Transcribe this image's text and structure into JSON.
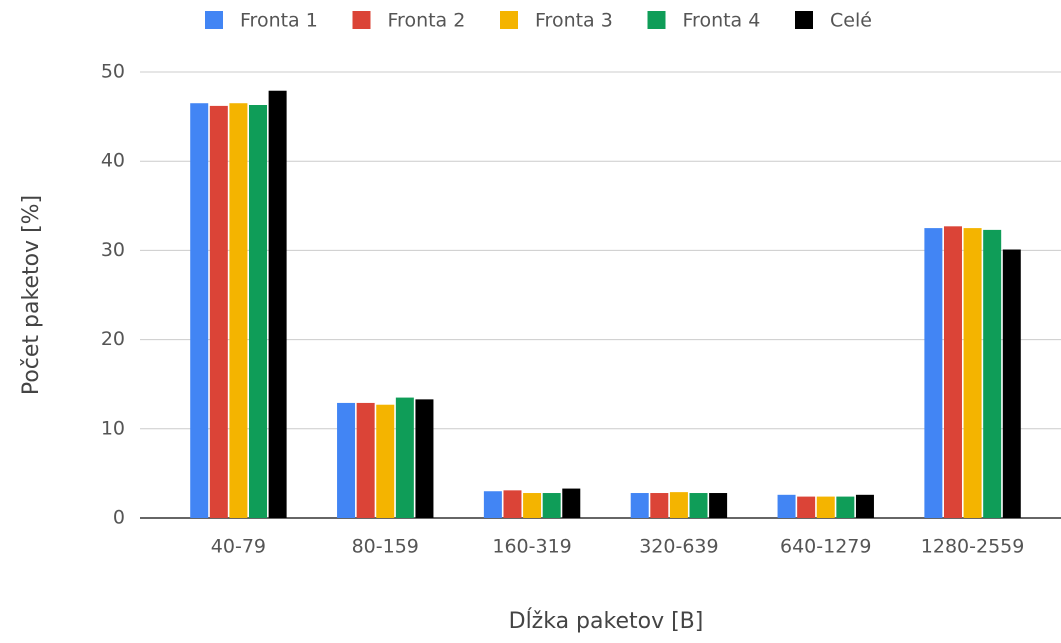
{
  "chart_data": {
    "type": "bar",
    "xlabel": "Dĺžka paketov [B]",
    "ylabel": "Počet paketov [%]",
    "categories": [
      "40-79",
      "80-159",
      "160-319",
      "320-639",
      "640-1279",
      "1280-2559"
    ],
    "series": [
      {
        "name": "Fronta 1",
        "color": "#4285f4",
        "values": [
          46.5,
          12.9,
          3.0,
          2.8,
          2.6,
          32.5
        ]
      },
      {
        "name": "Fronta 2",
        "color": "#db4437",
        "values": [
          46.2,
          12.9,
          3.1,
          2.8,
          2.4,
          32.7
        ]
      },
      {
        "name": "Fronta 3",
        "color": "#f4b400",
        "values": [
          46.5,
          12.7,
          2.8,
          2.9,
          2.4,
          32.5
        ]
      },
      {
        "name": "Fronta 4",
        "color": "#0f9d58",
        "values": [
          46.3,
          13.5,
          2.8,
          2.8,
          2.4,
          32.3
        ]
      },
      {
        "name": "Celé",
        "color": "#000000",
        "values": [
          47.9,
          13.3,
          3.3,
          2.8,
          2.6,
          30.1
        ]
      }
    ],
    "ylim": [
      0,
      50
    ],
    "yticks": [
      0,
      10,
      20,
      30,
      40,
      50
    ],
    "grid": true,
    "legend": "top"
  }
}
